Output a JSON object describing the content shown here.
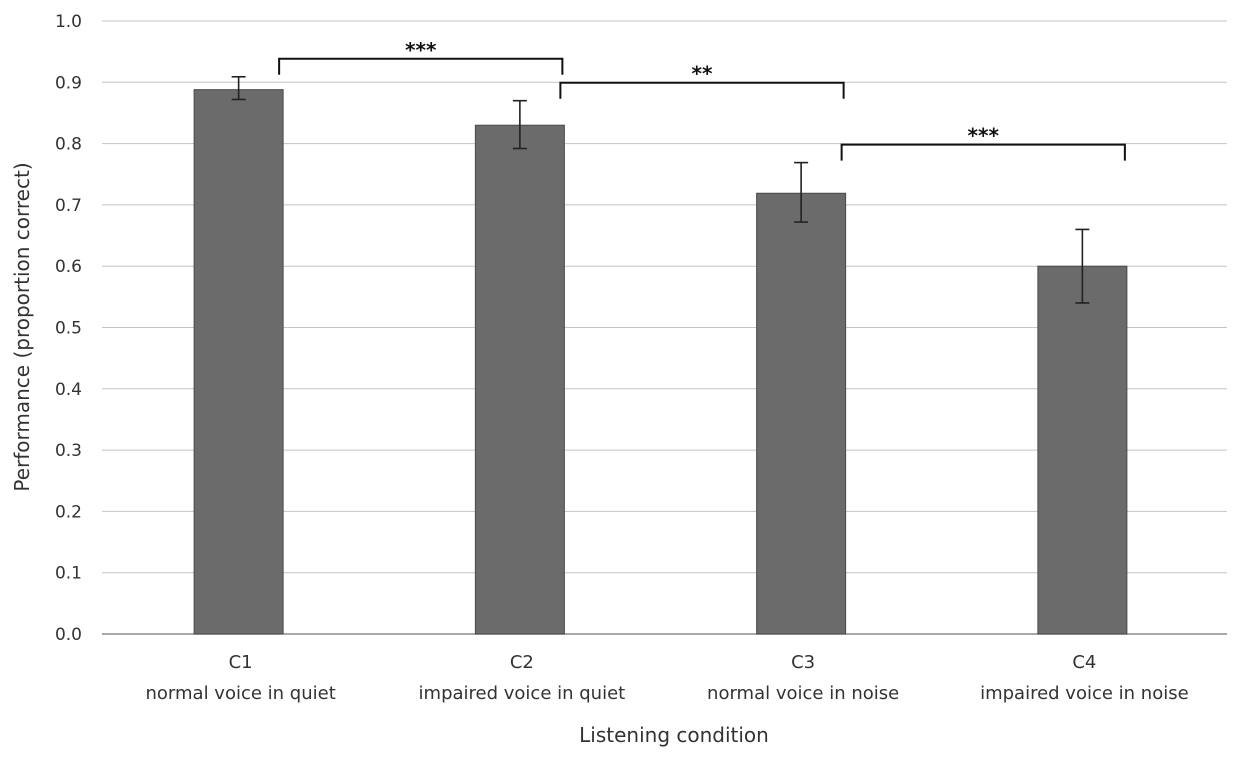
{
  "chart_data": {
    "type": "bar",
    "title": "",
    "xlabel": "Listening condition",
    "ylabel": "Performance (proportion correct)",
    "ylim": [
      0.0,
      1.0
    ],
    "yticks": [
      "0.0",
      "0.1",
      "0.2",
      "0.3",
      "0.4",
      "0.5",
      "0.6",
      "0.7",
      "0.8",
      "0.9",
      "1.0"
    ],
    "grid": "horizontal",
    "categories": [
      {
        "code": "C1",
        "label": "normal voice in quiet"
      },
      {
        "code": "C2",
        "label": "impaired voice in quiet"
      },
      {
        "code": "C3",
        "label": "normal voice in noise"
      },
      {
        "code": "C4",
        "label": "impaired voice in noise"
      }
    ],
    "values": [
      0.888,
      0.83,
      0.719,
      0.6
    ],
    "error_low": [
      0.872,
      0.792,
      0.672,
      0.54
    ],
    "error_high": [
      0.909,
      0.87,
      0.769,
      0.66
    ],
    "significance": [
      {
        "from": 0,
        "to": 1,
        "label": "***"
      },
      {
        "from": 1,
        "to": 2,
        "label": "**"
      },
      {
        "from": 2,
        "to": 3,
        "label": "***"
      }
    ],
    "colors": {
      "bar": "#6b6b6b",
      "bar_border": "#4a4a4a",
      "grid": "#c4c4c4",
      "axis": "#8c8c8c",
      "error": "#222222",
      "bracket": "#111111",
      "text": "#333333"
    }
  }
}
